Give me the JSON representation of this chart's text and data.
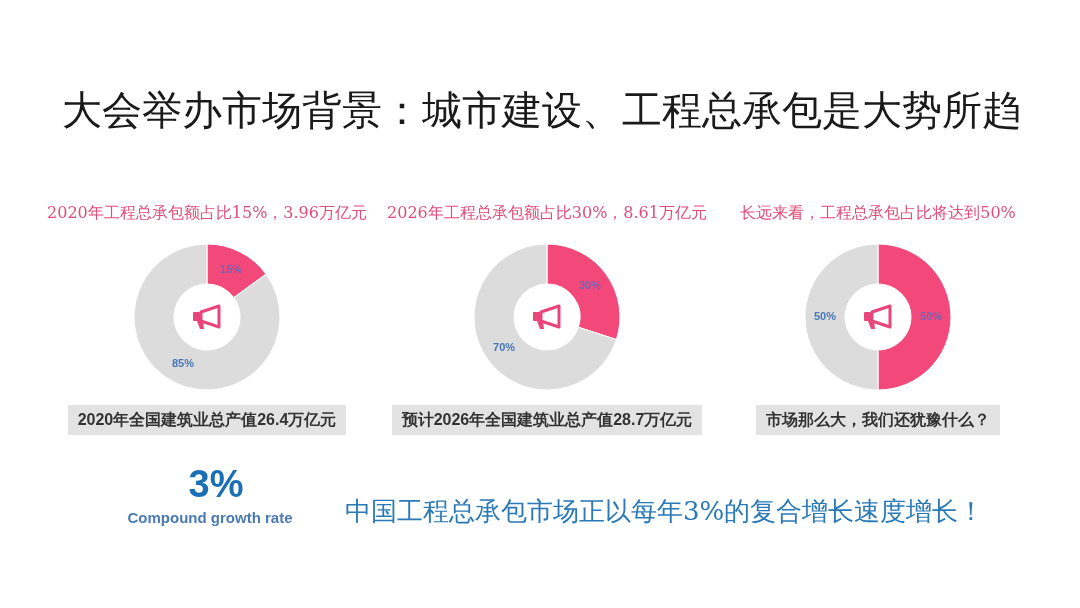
{
  "chart_data": [
    {
      "type": "other",
      "title": "大会举办市场背景：城市建设、工程总承包是大势所趋"
    },
    {
      "type": "donut",
      "title": "2020年工程总承包额占比15%，3.96万亿元",
      "categories": [
        null,
        null
      ],
      "values": [
        15,
        85
      ],
      "colors": [
        "#f2497a",
        "#dcdcdc"
      ],
      "value_labels": [
        "15%",
        "85%"
      ],
      "annotations": [
        "2020年全国建筑业总产值26.4万亿元"
      ]
    },
    {
      "type": "donut",
      "title": "2026年工程总承包额占比30%，8.61万亿元",
      "categories": [
        null,
        null
      ],
      "values": [
        30,
        70
      ],
      "colors": [
        "#f2497a",
        "#dcdcdc"
      ],
      "value_labels": [
        "30%",
        "70%"
      ],
      "annotations": [
        "预计2026年全国建筑业总产值28.7万亿元"
      ]
    },
    {
      "type": "donut",
      "title": "长远来看，工程总承包占比将达到50%",
      "categories": [
        null,
        null
      ],
      "values": [
        50,
        50
      ],
      "colors": [
        "#f2497a",
        "#dcdcdc"
      ],
      "value_labels": [
        "50%",
        "50%"
      ],
      "annotations": [
        "市场那么大，我们还犹豫什么？"
      ]
    },
    {
      "type": "other",
      "annotations": [
        "3%",
        "Compound growth rate",
        "中国工程总承包市场正以每年3%的复合增长速度增长！"
      ]
    }
  ]
}
